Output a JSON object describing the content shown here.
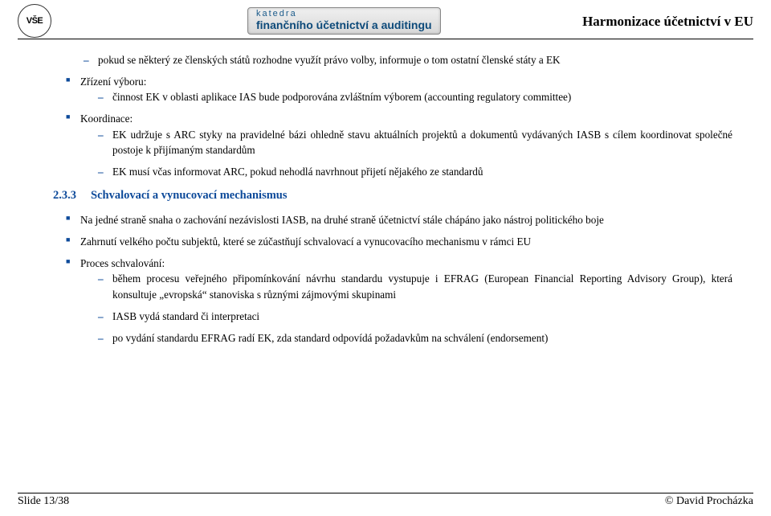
{
  "header": {
    "logo_text": "VŠE",
    "dept_line1": "katedra",
    "dept_line2": "finančního účetnictví a auditingu",
    "right_title": "Harmonizace účetnictví v EU"
  },
  "top_dashes": [
    "pokud se některý ze členských států rozhodne využít právo volby, informuje o tom ostatní členské státy a EK"
  ],
  "items1": [
    {
      "label": "Zřízení výboru:",
      "sub": [
        "činnost EK v oblasti aplikace IAS bude podporována zvláštním výborem (accounting regulatory committee)"
      ]
    },
    {
      "label": "Koordinace:",
      "sub": [
        "EK udržuje s ARC styky na pravidelné bázi ohledně stavu aktuálních projektů a dokumentů vydávaných IASB s cílem koordinovat společné postoje k přijímaným standardům",
        "EK musí včas informovat ARC, pokud nehodlá navrhnout přijetí nějakého ze standardů"
      ]
    }
  ],
  "section": {
    "number": "2.3.3",
    "title": "Schvalovací a vynucovací mechanismus"
  },
  "items2": [
    {
      "text": "Na jedné straně snaha o zachování nezávislosti IASB, na druhé straně účetnictví stále chápáno jako nástroj politického boje"
    },
    {
      "text": "Zahrnutí velkého počtu subjektů, které se zúčastňují schvalovací a vynucovacího mechanismu v rámci EU"
    },
    {
      "text": "Proces schvalování:",
      "sub": [
        "během procesu veřejného připomínkování návrhu standardu vystupuje i EFRAG (European Financial Reporting Advisory Group), která konsultuje „evropská“ stanoviska s různými zájmovými skupinami",
        "IASB vydá standard či interpretaci",
        "po vydání standardu EFRAG radí EK, zda standard odpovídá požadavkům na schválení (endorsement)"
      ]
    }
  ],
  "footer": {
    "slide": "Slide 13/38",
    "author": "© David Procházka"
  }
}
